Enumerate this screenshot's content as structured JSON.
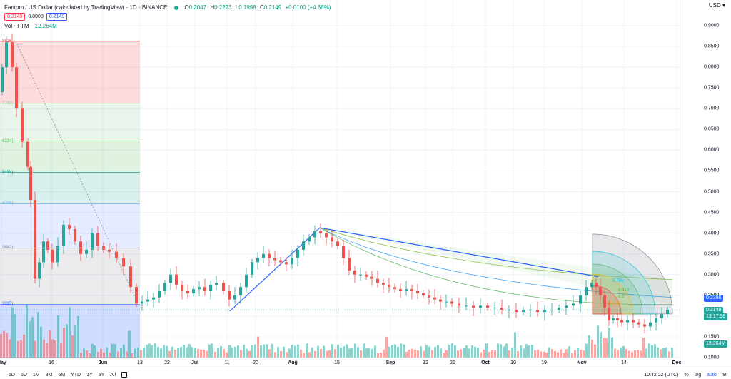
{
  "legend": {
    "title": "Fantom / US Dollar (calculated by TradingView) · 1D · BINANCE",
    "ohlc": [
      {
        "k": "O",
        "v": "0.2047"
      },
      {
        "k": "H",
        "v": "0.2223"
      },
      {
        "k": "L",
        "v": "0.1998"
      },
      {
        "k": "C",
        "v": "0.2149"
      }
    ],
    "change": "+0.0100 (+4.88%)",
    "sell": "0.2149",
    "spread": "0.0000",
    "buy": "0.2149",
    "vol_label": "Vol · FTM",
    "vol_value": "12.264M"
  },
  "currency": "USD",
  "price_tags": {
    "level": "0.2398",
    "last": "0.2149",
    "countdown": "13:17:38",
    "volume": "12.264M"
  },
  "bottom": {
    "timeframes": [
      "1D",
      "5D",
      "1M",
      "3M",
      "6M",
      "YTD",
      "1Y",
      "5Y",
      "All"
    ],
    "clock": "10:42:22 (UTC)",
    "percent": "%",
    "log": "log",
    "auto": "auto"
  },
  "colors": {
    "up": "#26a69a",
    "down": "#ef5350",
    "trend": "#2962ff",
    "grid": "#f0f3fa"
  },
  "fib_labels": [
    "8626",
    "7730)",
    "6334)",
    "5458)",
    "4708)",
    "3642)",
    "2285)"
  ],
  "fan_labels": [
    "0.786",
    "0.618",
    "0.5",
    "0.382"
  ],
  "chart_data": {
    "type": "candlestick",
    "title": "Fantom / US Dollar (calculated by TradingView) · 1D · BINANCE",
    "y_ticks": [
      "0.9000",
      "0.8500",
      "0.8000",
      "0.7500",
      "0.7000",
      "0.6500",
      "0.6000",
      "0.5500",
      "0.5000",
      "0.4500",
      "0.4000",
      "0.3500",
      "0.3000",
      "0.2500",
      "0.2000",
      "0.1500",
      "0.1000"
    ],
    "ylim": [
      0.1,
      0.9
    ],
    "x_ticks": [
      "May",
      "16",
      "Jun",
      "13",
      "22",
      "Jul",
      "11",
      "20",
      "Aug",
      "15",
      "Sep",
      "12",
      "21",
      "Oct",
      "10",
      "19",
      "Nov",
      "14",
      "Dec"
    ],
    "bold_ticks": [
      "May",
      "Jun",
      "Jul",
      "Aug",
      "Sep",
      "Oct",
      "Nov",
      "Dec"
    ],
    "last_close": 0.2149,
    "high_marker": 0.8626
  }
}
